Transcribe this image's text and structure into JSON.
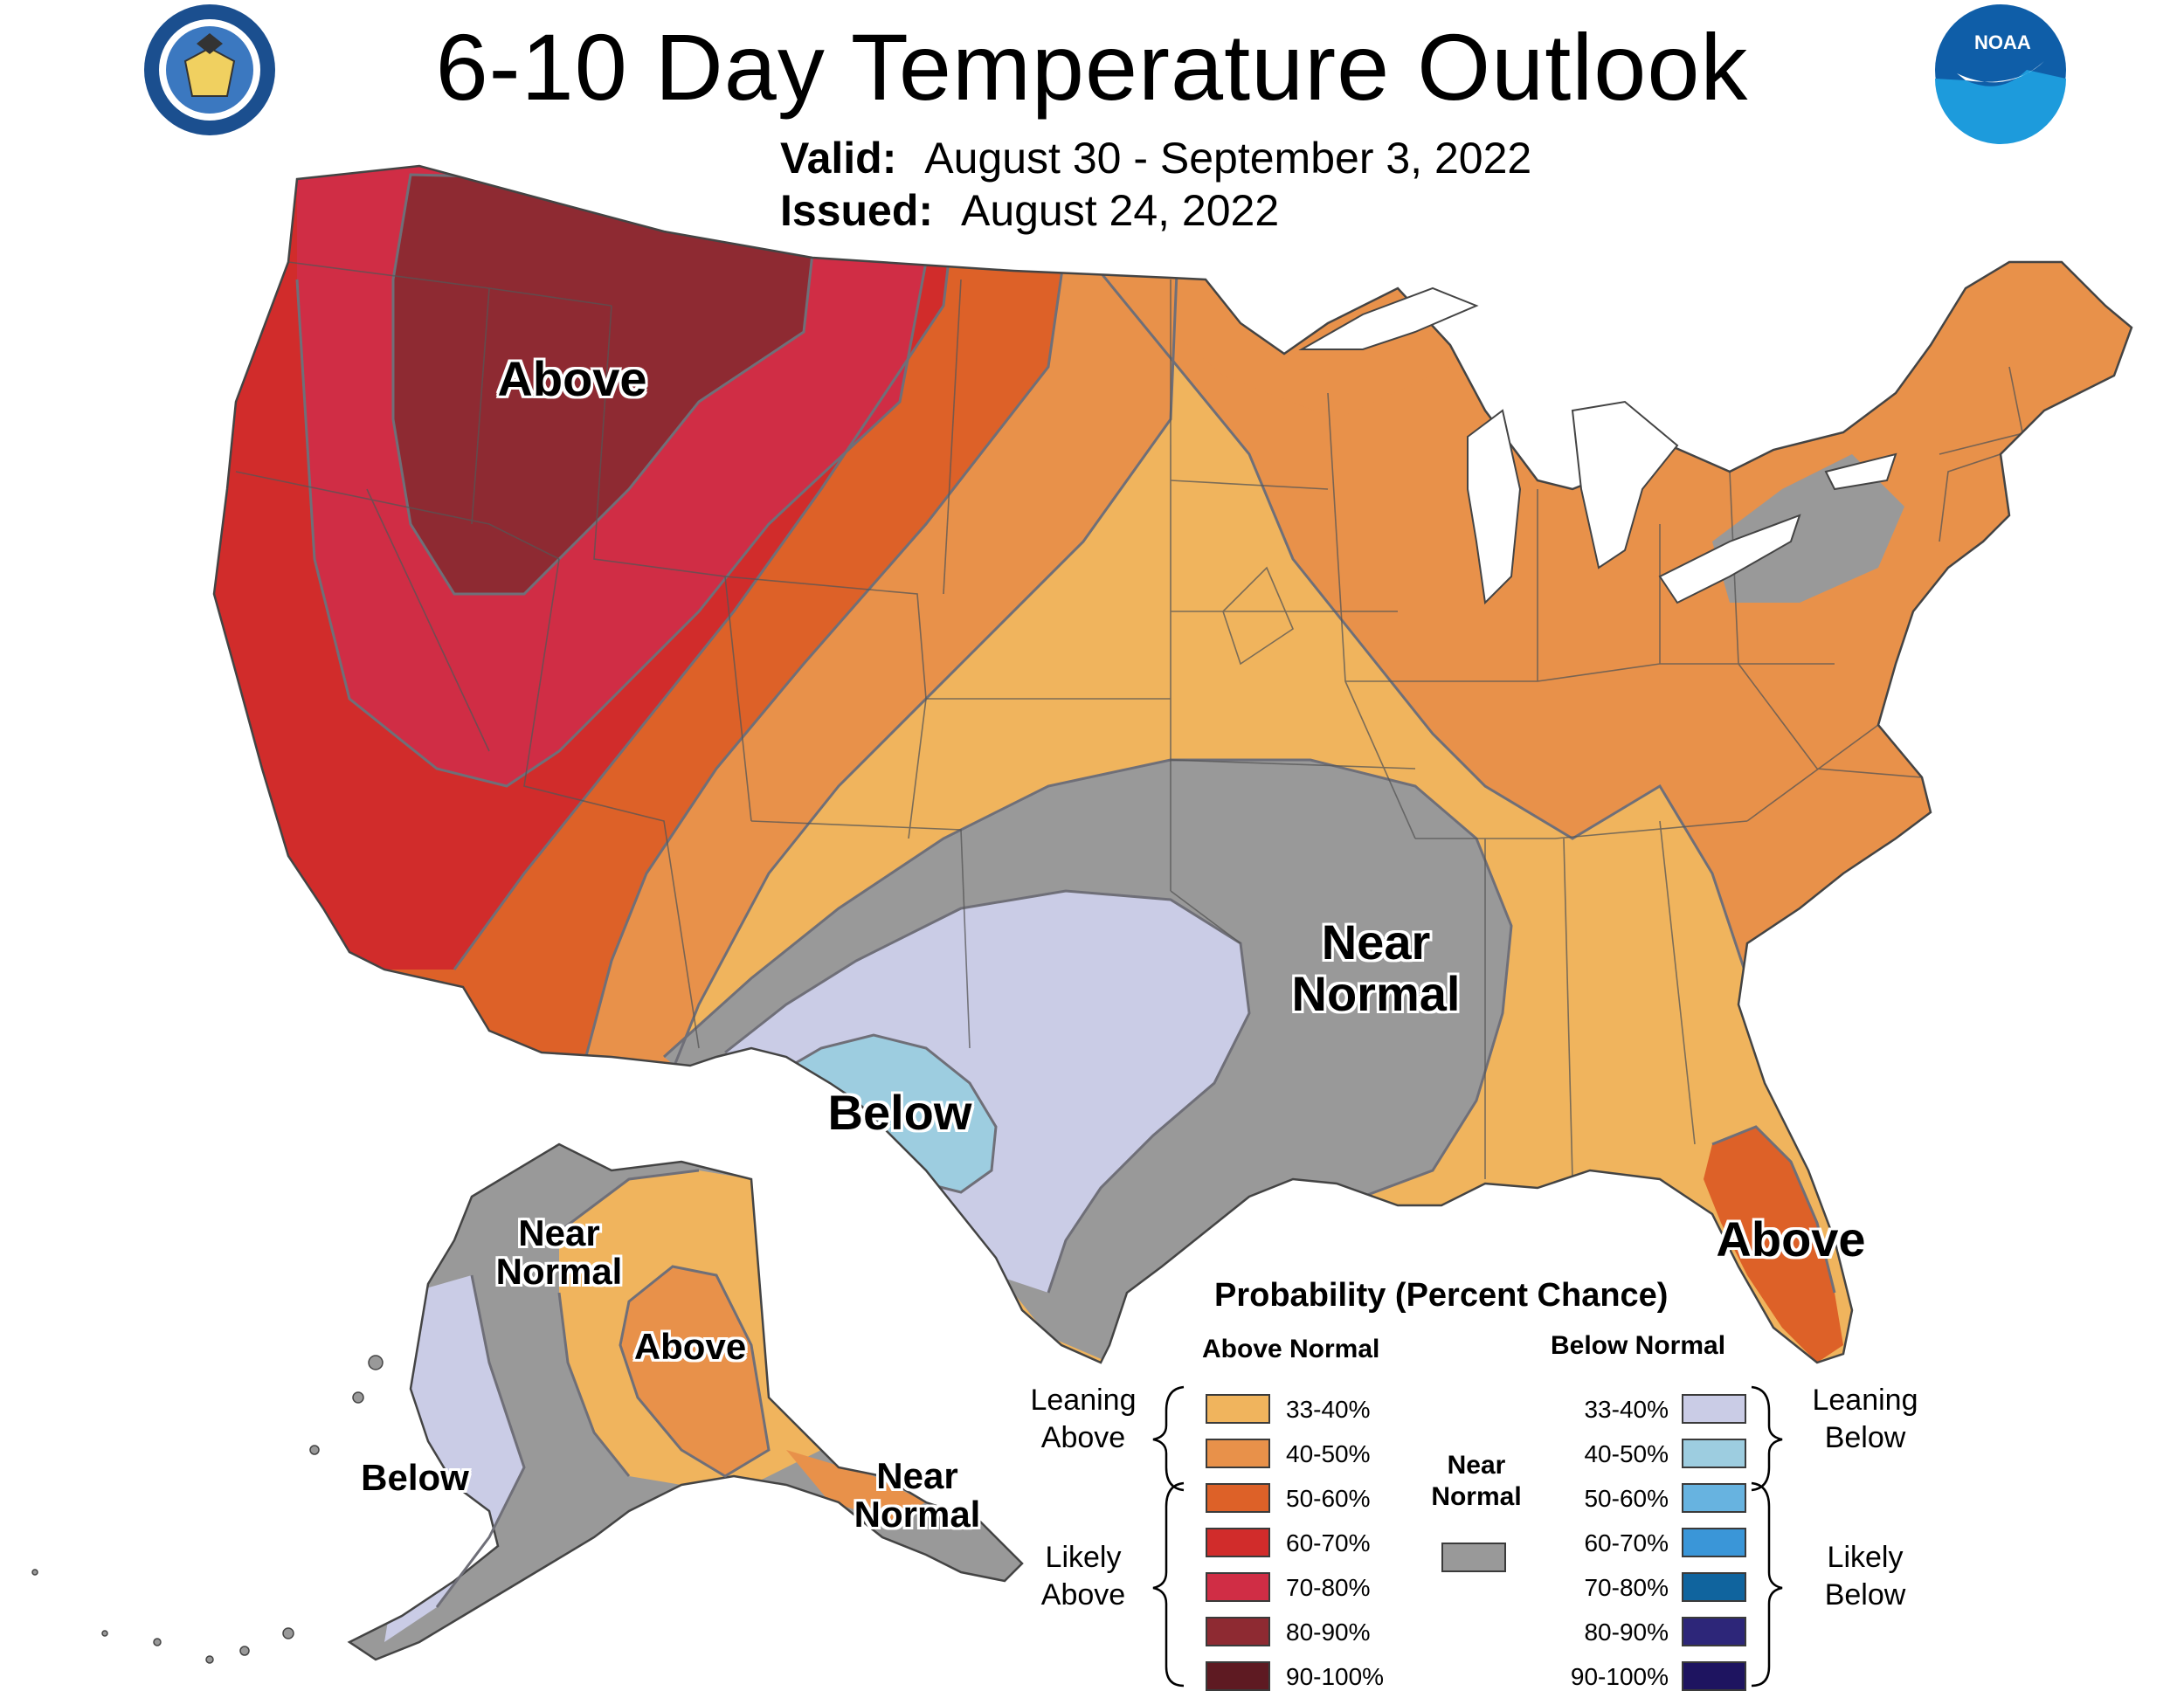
{
  "header": {
    "title": "6-10 Day Temperature Outlook",
    "valid_label": "Valid:",
    "valid_value": "August 30 - September 3, 2022",
    "issued_label": "Issued:",
    "issued_value": "August 24, 2022"
  },
  "logos": {
    "left": "department-of-commerce-seal",
    "right": "noaa-logo",
    "right_text": "NOAA"
  },
  "regions": {
    "northwest": "Above",
    "south_central": "Below",
    "mid_south": "Near Normal",
    "florida": "Above",
    "alaska_west_near": "Near Normal",
    "alaska_interior": "Above",
    "alaska_west": "Below",
    "alaska_southeast": "Near Normal"
  },
  "legend": {
    "title": "Probability (Percent Chance)",
    "above_header": "Above Normal",
    "below_header": "Below Normal",
    "near_header": "Near Normal",
    "near_color": "#999999",
    "leaning_above": "Leaning Above",
    "likely_above": "Likely Above",
    "leaning_below": "Leaning Below",
    "likely_below": "Likely Below",
    "above": [
      {
        "label": "33-40%",
        "color": "#F0B45D"
      },
      {
        "label": "40-50%",
        "color": "#E8914A"
      },
      {
        "label": "50-60%",
        "color": "#DD6128"
      },
      {
        "label": "60-70%",
        "color": "#D12C2B"
      },
      {
        "label": "70-80%",
        "color": "#D02D45"
      },
      {
        "label": "80-90%",
        "color": "#8E2A32"
      },
      {
        "label": "90-100%",
        "color": "#5E1A22"
      }
    ],
    "below": [
      {
        "label": "33-40%",
        "color": "#CACCE6"
      },
      {
        "label": "40-50%",
        "color": "#9DCDE0"
      },
      {
        "label": "50-60%",
        "color": "#67B3E0"
      },
      {
        "label": "60-70%",
        "color": "#3A96D8"
      },
      {
        "label": "70-80%",
        "color": "#10649E"
      },
      {
        "label": "80-90%",
        "color": "#2D2679"
      },
      {
        "label": "90-100%",
        "color": "#1E1460"
      }
    ]
  }
}
